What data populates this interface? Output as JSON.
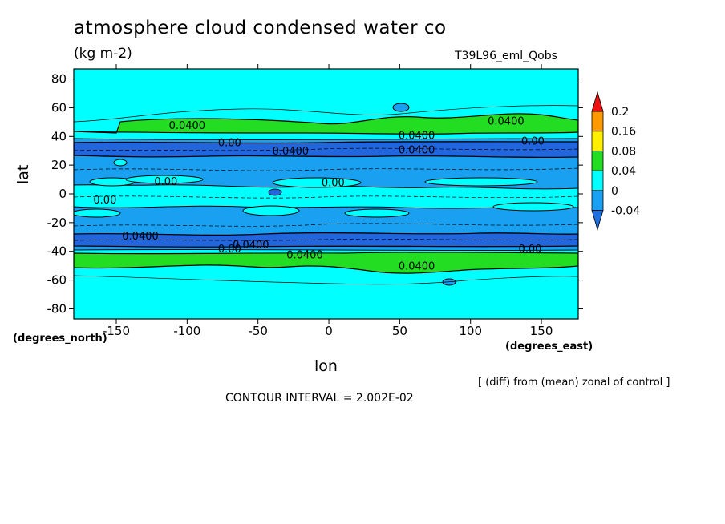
{
  "header": {
    "title": "atmosphere cloud condensed water co",
    "units": "(kg m-2)",
    "run_name": "T39L96_eml_Qobs"
  },
  "footer": {
    "note": "[ (diff) from (mean) zonal of control ]",
    "contour_interval": "CONTOUR INTERVAL = 2.002E-02"
  },
  "chart_data": {
    "type": "heatmap",
    "title": "atmosphere cloud condensed water co",
    "subtitle": "(kg m-2)",
    "xlabel": "lon",
    "ylabel": "lat",
    "x_units": "(degrees_east)",
    "y_units": "(degrees_north)",
    "xlim": [
      -180,
      176
    ],
    "ylim": [
      -87,
      87
    ],
    "x_ticks": [
      -150,
      -100,
      -50,
      0,
      50,
      100,
      150
    ],
    "x_tick_labels": [
      "-150",
      "-100",
      "-50",
      "0",
      "50",
      "100",
      "150"
    ],
    "y_ticks": [
      80,
      60,
      40,
      20,
      0,
      -20,
      -40,
      -60,
      -80
    ],
    "y_tick_labels": [
      "80",
      "60",
      "40",
      "20",
      "0",
      "-20",
      "-40",
      "-60",
      "-80"
    ],
    "colorbar": {
      "levels": [
        -0.04,
        0,
        0.04,
        0.08,
        0.16,
        0.2
      ],
      "labels": [
        "0.2",
        "0.16",
        "0.08",
        "0.04",
        "0",
        "-0.04"
      ],
      "colors": [
        "#1f6fe0",
        "#1aa0f0",
        "#00ffff",
        "#22dd22",
        "#ffee00",
        "#ff9900",
        "#ee1111"
      ]
    },
    "colors": {
      "deep_blue": "#2266dd",
      "blue": "#1aa0f0",
      "cyan": "#00ffff",
      "green": "#22dd22"
    },
    "contour_labels": [
      {
        "lon": -100,
        "lat": 48,
        "text": "0.0400"
      },
      {
        "lon": 125,
        "lat": 51,
        "text": "0.0400"
      },
      {
        "lon": 62,
        "lat": 41,
        "text": "0.0400"
      },
      {
        "lon": -70,
        "lat": 36,
        "text": "0.00"
      },
      {
        "lon": -27,
        "lat": 30,
        "text": "0.0400"
      },
      {
        "lon": 62,
        "lat": 31,
        "text": "0.0400"
      },
      {
        "lon": 144,
        "lat": 37,
        "text": "0.00"
      },
      {
        "lon": -115,
        "lat": 9,
        "text": "0.00"
      },
      {
        "lon": 3,
        "lat": 8,
        "text": "0.00"
      },
      {
        "lon": -158,
        "lat": -4,
        "text": "0.00"
      },
      {
        "lon": -133,
        "lat": -29,
        "text": "0.0400"
      },
      {
        "lon": -55,
        "lat": -35,
        "text": "0.0400"
      },
      {
        "lon": -70,
        "lat": -38,
        "text": "0.00"
      },
      {
        "lon": -17,
        "lat": -42,
        "text": "0.0400"
      },
      {
        "lon": 142,
        "lat": -38,
        "text": "0.00"
      },
      {
        "lon": 62,
        "lat": -50,
        "text": "0.0400"
      }
    ]
  }
}
